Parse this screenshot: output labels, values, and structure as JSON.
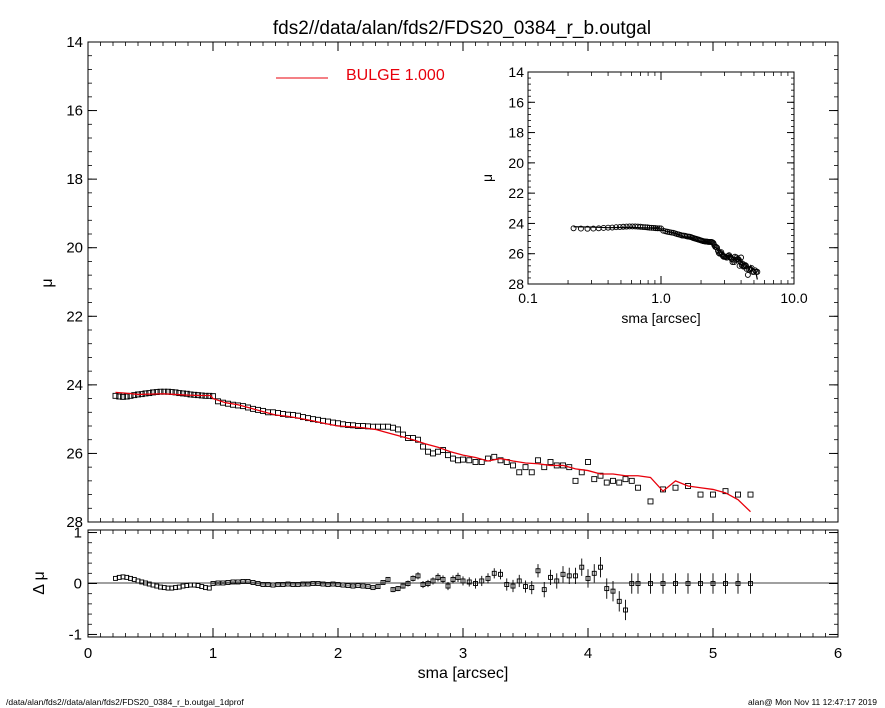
{
  "page": {
    "title": "fds2//data/alan/fds2/FDS20_0384_r_b.outgal",
    "footer_left": "/data/alan/fds2//data/alan/fds2/FDS20_0384_r_b.outgal_1dprof",
    "footer_right": "alan@  Mon Nov 11 12:47:17 2019"
  },
  "colors": {
    "model": "#e8000b",
    "data": "#000000",
    "background": "#ffffff"
  },
  "chart_data": [
    {
      "id": "main",
      "type": "scatter",
      "title": "fds2//data/alan/fds2/FDS20_0384_r_b.outgal",
      "xlabel": "",
      "ylabel": "μ",
      "xlim": [
        0,
        6
      ],
      "ylim": [
        28,
        14
      ],
      "y_inverted": true,
      "x_ticks": [
        0,
        1,
        2,
        3,
        4,
        5,
        6
      ],
      "y_ticks": [
        14,
        16,
        18,
        20,
        22,
        24,
        26,
        28
      ],
      "y_tick_labels": [
        "14",
        "16",
        "18",
        "20",
        "22",
        "24",
        "26",
        "28"
      ],
      "legend": {
        "position": "top-center",
        "entries": [
          {
            "label": "BULGE  1.000",
            "color": "#e8000b"
          }
        ]
      },
      "series": [
        {
          "name": "data",
          "style": "open-squares",
          "x": [
            0.22,
            0.25,
            0.28,
            0.31,
            0.34,
            0.37,
            0.4,
            0.43,
            0.46,
            0.49,
            0.52,
            0.55,
            0.58,
            0.61,
            0.64,
            0.67,
            0.7,
            0.73,
            0.76,
            0.79,
            0.82,
            0.85,
            0.88,
            0.91,
            0.94,
            0.97,
            1.0,
            1.04,
            1.08,
            1.12,
            1.16,
            1.2,
            1.24,
            1.28,
            1.32,
            1.36,
            1.4,
            1.44,
            1.48,
            1.52,
            1.56,
            1.6,
            1.64,
            1.68,
            1.72,
            1.76,
            1.8,
            1.84,
            1.88,
            1.92,
            1.96,
            2.0,
            2.04,
            2.08,
            2.12,
            2.16,
            2.2,
            2.24,
            2.28,
            2.32,
            2.36,
            2.4,
            2.44,
            2.48,
            2.52,
            2.56,
            2.6,
            2.64,
            2.68,
            2.72,
            2.76,
            2.8,
            2.84,
            2.88,
            2.92,
            2.96,
            3.0,
            3.05,
            3.1,
            3.15,
            3.2,
            3.25,
            3.3,
            3.35,
            3.4,
            3.45,
            3.5,
            3.55,
            3.6,
            3.65,
            3.7,
            3.75,
            3.8,
            3.85,
            3.9,
            3.95,
            4.0,
            4.05,
            4.1,
            4.15,
            4.2,
            4.25,
            4.3,
            4.35,
            4.4,
            4.5,
            4.6,
            4.7,
            4.8,
            4.9,
            5.0,
            5.1,
            5.2,
            5.3
          ],
          "y": [
            24.32,
            24.34,
            24.35,
            24.34,
            24.32,
            24.3,
            24.28,
            24.27,
            24.25,
            24.24,
            24.22,
            24.21,
            24.2,
            24.2,
            24.2,
            24.21,
            24.22,
            24.24,
            24.25,
            24.26,
            24.28,
            24.29,
            24.3,
            24.31,
            24.32,
            24.32,
            24.33,
            24.48,
            24.52,
            24.55,
            24.58,
            24.6,
            24.62,
            24.66,
            24.7,
            24.73,
            24.76,
            24.8,
            24.8,
            24.82,
            24.85,
            24.87,
            24.88,
            24.9,
            24.94,
            24.97,
            25.0,
            25.02,
            25.05,
            25.07,
            25.1,
            25.12,
            25.15,
            25.17,
            25.18,
            25.2,
            25.2,
            25.21,
            25.22,
            25.22,
            25.22,
            25.22,
            25.25,
            25.3,
            25.45,
            25.55,
            25.55,
            25.6,
            25.8,
            25.95,
            26.0,
            25.95,
            25.9,
            26.05,
            26.15,
            26.2,
            26.18,
            26.2,
            26.25,
            26.25,
            26.15,
            26.1,
            26.2,
            26.25,
            26.35,
            26.55,
            26.4,
            26.55,
            26.2,
            26.4,
            26.25,
            26.35,
            26.35,
            26.4,
            26.8,
            26.55,
            26.25,
            26.75,
            26.65,
            26.85,
            26.8,
            26.85,
            26.75,
            26.8,
            27.0,
            27.4,
            27.05,
            27.0,
            26.95,
            27.2,
            27.2,
            27.1,
            27.2,
            27.2
          ]
        },
        {
          "name": "BULGE  1.000",
          "style": "line",
          "x": [
            0.22,
            0.3,
            0.4,
            0.5,
            0.6,
            0.7,
            0.8,
            0.9,
            0.98,
            1.0,
            1.1,
            1.2,
            1.3,
            1.4,
            1.5,
            1.6,
            1.7,
            1.8,
            1.9,
            2.0,
            2.1,
            2.2,
            2.3,
            2.4,
            2.5,
            2.6,
            2.7,
            2.8,
            2.9,
            3.0,
            3.1,
            3.2,
            3.3,
            3.4,
            3.5,
            3.6,
            3.7,
            3.8,
            3.9,
            4.0,
            4.1,
            4.2,
            4.3,
            4.4,
            4.5,
            4.6,
            4.7,
            4.8,
            4.9,
            5.0,
            5.1,
            5.2,
            5.3
          ],
          "y": [
            24.22,
            24.24,
            24.28,
            24.27,
            24.26,
            24.28,
            24.3,
            24.31,
            24.31,
            24.4,
            24.52,
            24.58,
            24.68,
            24.78,
            24.88,
            24.92,
            24.98,
            25.05,
            25.13,
            25.2,
            25.22,
            25.25,
            25.3,
            25.4,
            25.5,
            25.6,
            25.72,
            25.82,
            25.95,
            26.05,
            26.12,
            26.22,
            26.15,
            26.22,
            26.28,
            26.3,
            26.35,
            26.35,
            26.45,
            26.5,
            26.6,
            26.6,
            26.65,
            26.65,
            26.7,
            27.1,
            26.8,
            26.95,
            27.0,
            27.05,
            27.15,
            27.35,
            27.7
          ]
        }
      ]
    },
    {
      "id": "residual",
      "type": "scatter",
      "xlabel": "sma [arcsec]",
      "ylabel": "Δ μ",
      "xlim": [
        0,
        6
      ],
      "ylim": [
        -1.05,
        1.05
      ],
      "x_ticks": [
        0,
        1,
        2,
        3,
        4,
        5,
        6
      ],
      "x_tick_labels": [
        "0",
        "1",
        "2",
        "3",
        "4",
        "5",
        "6"
      ],
      "y_ticks": [
        -1,
        0,
        1
      ],
      "y_tick_labels": [
        "-1",
        "0",
        "1"
      ],
      "series": [
        {
          "name": "residuals",
          "style": "open-squares-with-errorbars",
          "x": [
            0.22,
            0.25,
            0.28,
            0.31,
            0.34,
            0.37,
            0.4,
            0.43,
            0.46,
            0.49,
            0.52,
            0.55,
            0.58,
            0.61,
            0.64,
            0.67,
            0.7,
            0.73,
            0.76,
            0.79,
            0.82,
            0.85,
            0.88,
            0.91,
            0.94,
            0.97,
            1.0,
            1.04,
            1.08,
            1.12,
            1.16,
            1.2,
            1.24,
            1.28,
            1.32,
            1.36,
            1.4,
            1.44,
            1.48,
            1.52,
            1.56,
            1.6,
            1.64,
            1.68,
            1.72,
            1.76,
            1.8,
            1.84,
            1.88,
            1.92,
            1.96,
            2.0,
            2.04,
            2.08,
            2.12,
            2.16,
            2.2,
            2.24,
            2.28,
            2.32,
            2.36,
            2.4,
            2.44,
            2.48,
            2.52,
            2.56,
            2.6,
            2.64,
            2.68,
            2.72,
            2.76,
            2.8,
            2.84,
            2.88,
            2.92,
            2.96,
            3.0,
            3.05,
            3.1,
            3.15,
            3.2,
            3.25,
            3.3,
            3.35,
            3.4,
            3.45,
            3.5,
            3.55,
            3.6,
            3.65,
            3.7,
            3.75,
            3.8,
            3.85,
            3.9,
            3.95,
            4.0,
            4.05,
            4.1,
            4.15,
            4.2,
            4.25,
            4.3,
            4.35,
            4.4,
            4.5,
            4.6,
            4.7,
            4.8,
            4.9,
            5.0,
            5.1,
            5.2,
            5.3
          ],
          "y": [
            0.1,
            0.12,
            0.13,
            0.12,
            0.1,
            0.08,
            0.05,
            0.03,
            0.01,
            -0.01,
            -0.03,
            -0.05,
            -0.07,
            -0.08,
            -0.09,
            -0.09,
            -0.08,
            -0.07,
            -0.05,
            -0.04,
            -0.03,
            -0.03,
            -0.04,
            -0.06,
            -0.08,
            -0.09,
            0.0,
            0.01,
            0.01,
            0.02,
            0.03,
            0.03,
            0.04,
            0.04,
            0.02,
            0.0,
            -0.02,
            -0.02,
            -0.03,
            -0.02,
            -0.02,
            -0.01,
            -0.02,
            -0.02,
            -0.01,
            -0.01,
            0.0,
            0.0,
            -0.01,
            -0.02,
            -0.01,
            -0.02,
            -0.03,
            -0.04,
            -0.05,
            -0.04,
            -0.05,
            -0.06,
            -0.08,
            -0.06,
            0.02,
            0.08,
            -0.12,
            -0.1,
            -0.05,
            0.0,
            0.1,
            0.15,
            -0.02,
            0.0,
            0.05,
            0.12,
            0.08,
            -0.05,
            0.08,
            0.12,
            0.05,
            0.03,
            0.0,
            0.05,
            0.1,
            0.2,
            0.18,
            -0.02,
            -0.05,
            0.05,
            -0.06,
            -0.08,
            0.25,
            -0.12,
            0.12,
            0.05,
            0.18,
            0.15,
            0.15,
            0.32,
            0.1,
            0.2,
            0.32,
            -0.1,
            -0.15,
            -0.35,
            -0.52,
            0.0,
            0.0,
            0.0,
            0.0,
            0.0,
            0.0,
            0.0,
            0.0,
            0.0,
            0.0,
            0.0
          ],
          "yerr": [
            0.01,
            0.01,
            0.01,
            0.01,
            0.01,
            0.01,
            0.01,
            0.01,
            0.01,
            0.01,
            0.01,
            0.01,
            0.01,
            0.01,
            0.01,
            0.01,
            0.01,
            0.01,
            0.01,
            0.01,
            0.01,
            0.01,
            0.01,
            0.01,
            0.01,
            0.01,
            0.02,
            0.02,
            0.02,
            0.02,
            0.02,
            0.02,
            0.02,
            0.02,
            0.02,
            0.02,
            0.02,
            0.02,
            0.02,
            0.02,
            0.02,
            0.02,
            0.02,
            0.02,
            0.02,
            0.02,
            0.02,
            0.02,
            0.02,
            0.02,
            0.02,
            0.02,
            0.02,
            0.02,
            0.02,
            0.02,
            0.02,
            0.02,
            0.02,
            0.03,
            0.03,
            0.04,
            0.05,
            0.05,
            0.05,
            0.06,
            0.06,
            0.07,
            0.07,
            0.07,
            0.07,
            0.08,
            0.08,
            0.08,
            0.08,
            0.09,
            0.09,
            0.09,
            0.1,
            0.1,
            0.1,
            0.1,
            0.1,
            0.12,
            0.12,
            0.12,
            0.12,
            0.13,
            0.13,
            0.15,
            0.15,
            0.15,
            0.16,
            0.16,
            0.16,
            0.17,
            0.18,
            0.18,
            0.2,
            0.2,
            0.2,
            0.2,
            0.2,
            0.2,
            0.2,
            0.2,
            0.2,
            0.2,
            0.2,
            0.2,
            0.2,
            0.2,
            0.2,
            0.2
          ]
        }
      ]
    },
    {
      "id": "inset",
      "type": "scatter",
      "xlabel": "sma [arcsec]",
      "ylabel": "μ",
      "x_scale": "log",
      "xlim": [
        0.1,
        10.0
      ],
      "ylim": [
        28,
        14
      ],
      "y_inverted": true,
      "x_ticks": [
        0.1,
        1.0,
        10.0
      ],
      "x_tick_labels": [
        "0.1",
        "1.0",
        "10.0"
      ],
      "y_ticks": [
        14,
        16,
        18,
        20,
        22,
        24,
        26,
        28
      ],
      "y_tick_labels": [
        "14",
        "16",
        "18",
        "20",
        "22",
        "24",
        "26",
        "28"
      ],
      "series": [
        {
          "name": "data",
          "style": "open-circles",
          "ref": "main.data"
        },
        {
          "name": "BULGE  1.000",
          "style": "line",
          "ref": "main.model"
        }
      ]
    }
  ]
}
